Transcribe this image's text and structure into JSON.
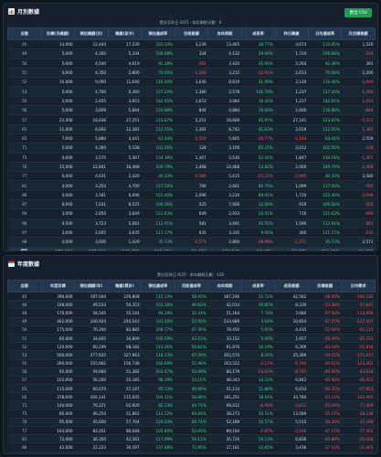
{
  "export_button": "匯出 CSV",
  "monthly": {
    "title": "月別數據",
    "subtitle": "累計至昨日 8/25 · 本月剩餘天數：6",
    "columns": [
      "店號",
      "目標(月總額)",
      "預估總額(月)",
      "業績(至今)",
      "預估達成率",
      "目前差額",
      "去年同期",
      "成長率",
      "昨日業績",
      "日均達成率",
      "月目標差額"
    ],
    "rows": [
      [
        "45",
        "14,000",
        "12,444",
        "17,239",
        "123.14%",
        "3,239",
        "13,465",
        "38.77%",
        "3,674",
        "110.85%",
        "1,520"
      ],
      [
        "49",
        "5,000",
        "4,300",
        "5,334",
        "106.68%",
        "334",
        "4,132",
        "29.09%",
        "1,724",
        "106.68%",
        "-334"
      ],
      [
        "50",
        "5,000",
        "4,540",
        "4,619",
        "92.38%",
        "-381",
        "3,420",
        "35.06%",
        "2,264",
        "92.38%",
        "381"
      ],
      [
        "51",
        "4,000",
        "4,350",
        "2,800",
        "70.00%",
        "-1,200",
        "3,215",
        "-12.91%",
        "2,013",
        "70.00%",
        "1,200"
      ],
      [
        "52",
        "10,000",
        "9,000",
        "11,640",
        "116.40%",
        "1,640",
        "8,819",
        "31.99%",
        "3,120",
        "116.40%",
        "-1,640"
      ],
      [
        "53",
        "5,000",
        "4,700",
        "6,360",
        "127.20%",
        "1,360",
        "2,578",
        "146.70%",
        "1,237",
        "127.20%",
        "-1,360"
      ],
      [
        "55",
        "2,000",
        "2,655",
        "3,653",
        "182.65%",
        "1,653",
        "3,084",
        "18.45%",
        "1,237",
        "182.65%",
        "-1,653"
      ],
      [
        "56",
        "5,000",
        "3,609",
        "5,844",
        "116.88%",
        "844",
        "4,884",
        "19.66%",
        "1,000",
        "116.88%",
        "-844"
      ],
      [
        "57",
        "22,000",
        "18,636",
        "27,251",
        "123.87%",
        "5,251",
        "18,669",
        "45.97%",
        "27,141",
        "123.87%",
        "-5,251"
      ],
      [
        "61",
        "11,000",
        "8,692",
        "12,381",
        "112.55%",
        "1,381",
        "8,742",
        "41.63%",
        "2,019",
        "112.55%",
        "-1,381"
      ],
      [
        "65",
        "7,000",
        "5,880",
        "4,441",
        "63.44%",
        "-2,559",
        "5,605",
        "-20.77%",
        "-1,164",
        "63.44%",
        "2,559"
      ],
      [
        "71",
        "5,000",
        "4,300",
        "5,128",
        "102.56%",
        "128",
        "3,106",
        "65.10%",
        "2,012",
        "102.56%",
        "-128"
      ],
      [
        "75",
        "4,000",
        "3,575",
        "5,367",
        "134.18%",
        "1,367",
        "3,530",
        "52.04%",
        "1,847",
        "134.18%",
        "-1,367"
      ],
      [
        "76",
        "15,000",
        "12,841",
        "16,468",
        "109.79%",
        "1,468",
        "14,468",
        "13.82%",
        "2,000",
        "109.79%",
        "-1,468"
      ],
      [
        "77",
        "6,000",
        "4,631",
        "2,420",
        "40.33%",
        "-3,580",
        "5,415",
        "-55.31%",
        "-2,995",
        "40.33%",
        "3,580"
      ],
      [
        "81",
        "4,000",
        "3,254",
        "4,700",
        "117.50%",
        "700",
        "2,601",
        "80.70%",
        "1,099",
        "117.50%",
        "-700"
      ],
      [
        "86",
        "4,000",
        "3,181",
        "6,096",
        "152.40%",
        "2,096",
        "3,210",
        "89.91%",
        "1,720",
        "152.40%",
        "-2,096"
      ],
      [
        "87",
        "8,000",
        "7,031",
        "8,525",
        "106.56%",
        "525",
        "7,606",
        "12.08%",
        "919",
        "106.56%",
        "-525"
      ],
      [
        "90",
        "3,000",
        "2,850",
        "3,649",
        "121.63%",
        "649",
        "2,933",
        "24.41%",
        "716",
        "121.63%",
        "-649"
      ],
      [
        "96",
        "4,500",
        "3,723",
        "5,081",
        "112.91%",
        "581",
        "3,491",
        "45.55%",
        "1,590",
        "112.91%",
        "-581"
      ],
      [
        "97",
        "3,000",
        "2,605",
        "3,635",
        "121.17%",
        "635",
        "3,335",
        "9.00%",
        "300",
        "121.17%",
        "-635"
      ],
      [
        "98",
        "4,000",
        "3,600",
        "1,429",
        "35.73%",
        "-2,571",
        "2,800",
        "-48.96%",
        "-1,371",
        "35.73%",
        "2,571"
      ]
    ],
    "total": [
      "總計",
      "152,500",
      "125,200",
      "181,521",
      "119.03%",
      "29,021",
      "160,542",
      "13.07%",
      "20,979",
      "119.03%",
      "-29,021"
    ]
  },
  "yearly": {
    "title": "年度數據",
    "subtitle": "累計至昨日 8/25 · 本年剩餘天數：128",
    "columns": [
      "店號",
      "年度目標",
      "預估總額(年)",
      "業績(累計)",
      "預估達成率",
      "目前達成率",
      "去年同期",
      "成長率",
      "成長差額",
      "目標差額",
      "日均需求"
    ],
    "rows": [
      [
        "45",
        "390,000",
        "187,044",
        "229,808",
        "115.13%",
        "58.93%",
        "187,246",
        "22.72%",
        "42,562",
        "-58.93%",
        "-160,192"
      ],
      [
        "46",
        "108,000",
        "49,533",
        "50,353",
        "102.18%",
        "46.62%",
        "42,014",
        "19.85%",
        "8,339",
        "-53.38%",
        "-57,647"
      ],
      [
        "48",
        "170,000",
        "58,545",
        "55,144",
        "94.19%",
        "32.44%",
        "51,164",
        "7.78%",
        "3,980",
        "-67.56%",
        "-114,856"
      ],
      [
        "49",
        "462,000",
        "240,924",
        "244,543",
        "101.50%",
        "52.93%",
        "233,689",
        "4.64%",
        "10,854",
        "-47.07%",
        "-217,457"
      ],
      [
        "50",
        "175,000",
        "76,200",
        "82,885",
        "108.77%",
        "47.36%",
        "78,450",
        "5.65%",
        "4,435",
        "-52.64%",
        "-92,115"
      ],
      [
        "51",
        "80,000",
        "34,605",
        "34,809",
        "100.59%",
        "43.51%",
        "33,152",
        "5.00%",
        "1,657",
        "-56.49%",
        "-45,191"
      ],
      [
        "52",
        "120,000",
        "60,199",
        "68,182",
        "113.26%",
        "56.82%",
        "61,876",
        "10.19%",
        "6,306",
        "-43.18%",
        "-51,818"
      ],
      [
        "53",
        "500,000",
        "277,635",
        "327,963",
        "118.13%",
        "65.59%",
        "302,574",
        "8.39%",
        "25,389",
        "-34.41%",
        "-172,037"
      ],
      [
        "55",
        "280,000",
        "155,662",
        "156,738",
        "100.69%",
        "55.98%",
        "163,522",
        "-4.15%",
        "-6,784",
        "-44.02%",
        "-123,262"
      ],
      [
        "56",
        "95,000",
        "49,660",
        "51,382",
        "103.47%",
        "54.09%",
        "60,179",
        "-14.62%",
        "-8,797",
        "-45.91%",
        "-43,618"
      ],
      [
        "57",
        "102,000",
        "56,200",
        "55,185",
        "98.19%",
        "54.10%",
        "48,343",
        "14.15%",
        "6,842",
        "-45.90%",
        "-46,815"
      ],
      [
        "61",
        "115,000",
        "60,070",
        "57,147",
        "95.13%",
        "49.69%",
        "51,114",
        "11.80%",
        "6,033",
        "-50.31%",
        "-57,853"
      ],
      [
        "65",
        "378,000",
        "206,141",
        "215,035",
        "104.31%",
        "56.89%",
        "181,251",
        "18.64%",
        "33,784",
        "-43.11%",
        "-162,965"
      ],
      [
        "71",
        "140,000",
        "76,221",
        "62,600",
        "82.13%",
        "44.71%",
        "68,412",
        "-8.49%",
        "-5,812",
        "-55.29%",
        "-77,400"
      ],
      [
        "75",
        "80,000",
        "46,254",
        "51,862",
        "112.12%",
        "64.83%",
        "38,273",
        "35.51%",
        "13,589",
        "-35.17%",
        "-28,138"
      ],
      [
        "76",
        "95,000",
        "45,600",
        "57,704",
        "126.54%",
        "60.74%",
        "52,189",
        "10.57%",
        "5,515",
        "-39.26%",
        "-37,296"
      ],
      [
        "77",
        "164,000",
        "82,051",
        "86,648",
        "105.60%",
        "52.83%",
        "89,194",
        "-2.85%",
        "-2,546",
        "-47.17%",
        "-77,352"
      ],
      [
        "81",
        "72,000",
        "36,350",
        "42,562",
        "117.09%",
        "59.11%",
        "35,726",
        "19.13%",
        "6,836",
        "-40.89%",
        "-29,438"
      ],
      [
        "86",
        "42,000",
        "22,223",
        "30,597",
        "137.68%",
        "72.85%",
        "27,161",
        "12.65%",
        "3,436",
        "-27.15%",
        "-11,403"
      ],
      [
        "90",
        "60,000",
        "26,000",
        "39,426",
        "151.64%",
        "65.71%",
        "33,192",
        "18.78%",
        "6,234",
        "-34.29%",
        "-20,574"
      ]
    ],
    "total": [
      "總計",
      "3,690,000",
      "1,913,855",
      "2,063,459",
      "107.82%",
      "55.92%",
      "1,884,088",
      "9.52%",
      "179,371",
      "-44.08%",
      "-1,626,541"
    ]
  }
}
